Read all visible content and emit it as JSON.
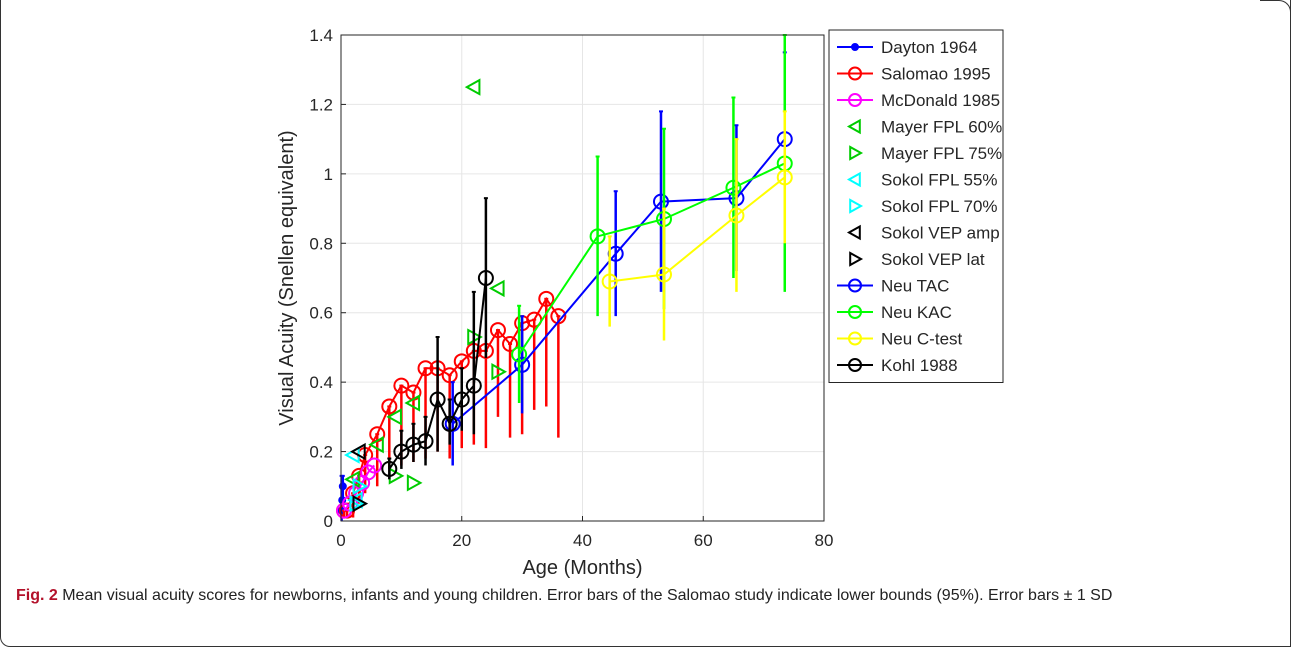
{
  "caption": {
    "label": "Fig. 2",
    "text": " Mean visual acuity scores for newborns, infants and young children. Error bars of the Salomao study indicate lower bounds (95%). Error bars ± 1 SD"
  },
  "chart_data": {
    "type": "scatter",
    "title": "",
    "xlabel": "Age (Months)",
    "ylabel": "Visual Acuity (Snellen equivalent)",
    "xlim": [
      0,
      80
    ],
    "ylim": [
      0,
      1.4
    ],
    "xticks": [
      "0",
      "20",
      "40",
      "60",
      "80"
    ],
    "yticks": [
      "0",
      "0.2",
      "0.4",
      "0.6",
      "0.8",
      "1",
      "1.2",
      "1.4"
    ],
    "grid": true,
    "legend_position": "right",
    "series": [
      {
        "name": "Dayton 1964",
        "color": "#0000ff",
        "marker": "dot",
        "line": true,
        "points": [
          [
            0.1,
            0.03
          ],
          [
            0.2,
            0.06
          ],
          [
            0.3,
            0.1
          ]
        ],
        "errors": [
          [
            0.1,
            0.0,
            0.13
          ],
          [
            0.2,
            0.02,
            0.1
          ],
          [
            0.3,
            0.05,
            0.13
          ]
        ]
      },
      {
        "name": "Salomao 1995",
        "color": "#ff0000",
        "marker": "circle",
        "line": true,
        "points": [
          [
            0.5,
            0.03
          ],
          [
            1,
            0.03
          ],
          [
            2,
            0.08
          ],
          [
            3,
            0.13
          ],
          [
            4,
            0.19
          ],
          [
            6,
            0.25
          ],
          [
            8,
            0.33
          ],
          [
            10,
            0.39
          ],
          [
            12,
            0.37
          ],
          [
            14,
            0.44
          ],
          [
            16,
            0.44
          ],
          [
            18,
            0.42
          ],
          [
            20,
            0.46
          ],
          [
            22,
            0.49
          ],
          [
            24,
            0.49
          ],
          [
            26,
            0.55
          ],
          [
            28,
            0.51
          ],
          [
            30,
            0.57
          ],
          [
            32,
            0.58
          ],
          [
            34,
            0.64
          ],
          [
            36,
            0.59
          ]
        ],
        "errors": [
          [
            0.5,
            0.01,
            0.03
          ],
          [
            1,
            0.01,
            0.03
          ],
          [
            2,
            0.01,
            0.08
          ],
          [
            3,
            0.05,
            0.13
          ],
          [
            4,
            0.08,
            0.19
          ],
          [
            6,
            0.1,
            0.25
          ],
          [
            8,
            0.15,
            0.33
          ],
          [
            10,
            0.16,
            0.39
          ],
          [
            12,
            0.17,
            0.37
          ],
          [
            14,
            0.18,
            0.44
          ],
          [
            16,
            0.2,
            0.44
          ],
          [
            18,
            0.18,
            0.42
          ],
          [
            20,
            0.21,
            0.46
          ],
          [
            22,
            0.22,
            0.49
          ],
          [
            24,
            0.21,
            0.49
          ],
          [
            26,
            0.3,
            0.55
          ],
          [
            28,
            0.24,
            0.51
          ],
          [
            30,
            0.25,
            0.57
          ],
          [
            32,
            0.32,
            0.58
          ],
          [
            34,
            0.33,
            0.64
          ],
          [
            36,
            0.24,
            0.59
          ]
        ]
      },
      {
        "name": "McDonald 1985",
        "color": "#ff00ff",
        "marker": "circle",
        "line": true,
        "points": [
          [
            0.5,
            0.03
          ],
          [
            1.5,
            0.05
          ],
          [
            2.5,
            0.08
          ],
          [
            3.5,
            0.11
          ],
          [
            4.5,
            0.14
          ],
          [
            5.5,
            0.16
          ]
        ],
        "errors": []
      },
      {
        "name": "Mayer FPL 60%",
        "color": "#00cc00",
        "marker": "tri-left",
        "line": false,
        "points": [
          [
            2,
            0.12
          ],
          [
            6,
            0.22
          ],
          [
            9,
            0.3
          ],
          [
            12,
            0.34
          ],
          [
            22,
            1.25
          ],
          [
            26,
            0.67
          ]
        ],
        "errors": []
      },
      {
        "name": "Mayer FPL 75%",
        "color": "#00cc00",
        "marker": "tri-right",
        "line": false,
        "points": [
          [
            9,
            0.13
          ],
          [
            12,
            0.11
          ],
          [
            22,
            0.53
          ],
          [
            26,
            0.43
          ]
        ],
        "errors": []
      },
      {
        "name": "Sokol FPL 55%",
        "color": "#00ffff",
        "marker": "tri-left",
        "line": false,
        "points": [
          [
            2,
            0.19
          ],
          [
            2.5,
            0.06
          ]
        ],
        "errors": []
      },
      {
        "name": "Sokol FPL 70%",
        "color": "#00ffff",
        "marker": "tri-right",
        "line": false,
        "points": [
          [
            2.5,
            0.05
          ],
          [
            3,
            0.1
          ]
        ],
        "errors": []
      },
      {
        "name": "Sokol VEP amp",
        "color": "#000000",
        "marker": "tri-left",
        "line": false,
        "points": [
          [
            3,
            0.2
          ]
        ],
        "errors": []
      },
      {
        "name": "Sokol VEP lat",
        "color": "#000000",
        "marker": "tri-right",
        "line": false,
        "points": [
          [
            3,
            0.05
          ]
        ],
        "errors": []
      },
      {
        "name": "Neu TAC",
        "color": "#0000ff",
        "marker": "circle",
        "line": true,
        "points": [
          [
            18.5,
            0.28
          ],
          [
            30,
            0.45
          ],
          [
            45.5,
            0.77
          ],
          [
            53,
            0.92
          ],
          [
            65.5,
            0.93
          ],
          [
            73.5,
            1.1
          ]
        ],
        "errors": [
          [
            18.5,
            0.16,
            0.4
          ],
          [
            30,
            0.31,
            0.59
          ],
          [
            45.5,
            0.59,
            0.95
          ],
          [
            53,
            0.66,
            1.18
          ],
          [
            65.5,
            0.72,
            1.14
          ],
          [
            73.5,
            0.85,
            1.35
          ]
        ]
      },
      {
        "name": "Neu KAC",
        "color": "#00ff00",
        "marker": "circle",
        "line": true,
        "points": [
          [
            29.5,
            0.48
          ],
          [
            42.5,
            0.82
          ],
          [
            53.5,
            0.87
          ],
          [
            65,
            0.96
          ],
          [
            73.5,
            1.03
          ]
        ],
        "errors": [
          [
            29.5,
            0.34,
            0.62
          ],
          [
            42.5,
            0.59,
            1.05
          ],
          [
            53.5,
            0.61,
            1.13
          ],
          [
            65,
            0.7,
            1.22
          ],
          [
            73.5,
            0.66,
            1.4
          ]
        ]
      },
      {
        "name": "Neu C-test",
        "color": "#ffff00",
        "marker": "circle",
        "line": true,
        "points": [
          [
            44.5,
            0.69
          ],
          [
            53.5,
            0.71
          ],
          [
            65.5,
            0.88
          ],
          [
            73.5,
            0.99
          ]
        ],
        "errors": [
          [
            44.5,
            0.56,
            0.82
          ],
          [
            53.5,
            0.52,
            0.9
          ],
          [
            65.5,
            0.66,
            1.1
          ],
          [
            73.5,
            0.8,
            1.18
          ]
        ]
      },
      {
        "name": "Kohl 1988",
        "color": "#000000",
        "marker": "circle",
        "line": true,
        "points": [
          [
            8,
            0.15
          ],
          [
            10,
            0.2
          ],
          [
            12,
            0.22
          ],
          [
            14,
            0.23
          ],
          [
            16,
            0.35
          ],
          [
            18,
            0.28
          ],
          [
            20,
            0.35
          ],
          [
            22,
            0.39
          ],
          [
            24,
            0.7
          ]
        ],
        "errors": [
          [
            8,
            0.12,
            0.18
          ],
          [
            10,
            0.15,
            0.26
          ],
          [
            12,
            0.17,
            0.28
          ],
          [
            14,
            0.16,
            0.3
          ],
          [
            16,
            0.2,
            0.53
          ],
          [
            18,
            0.22,
            0.35
          ],
          [
            20,
            0.26,
            0.44
          ],
          [
            22,
            0.25,
            0.66
          ],
          [
            24,
            0.47,
            0.93
          ]
        ]
      }
    ]
  }
}
